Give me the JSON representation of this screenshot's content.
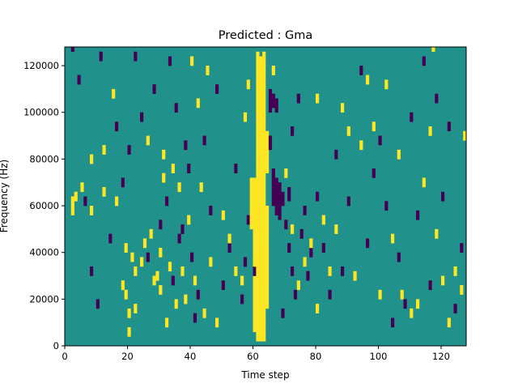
{
  "chart_data": {
    "type": "heatmap",
    "title": "Predicted : Gma",
    "xlabel": "Time step",
    "ylabel": "Frequency (Hz)",
    "xlim": [
      0,
      128
    ],
    "ylim": [
      0,
      128000
    ],
    "x_ticks": [
      0,
      20,
      40,
      60,
      80,
      100,
      120
    ],
    "y_ticks": [
      0,
      20000,
      40000,
      60000,
      80000,
      100000,
      120000
    ],
    "x_tick_labels": [
      "0",
      "20",
      "40",
      "60",
      "80",
      "100",
      "120"
    ],
    "y_tick_labels": [
      "0",
      "20000",
      "40000",
      "60000",
      "80000",
      "100000",
      "120000"
    ],
    "n_time_steps": 128,
    "n_freq_bins": 64,
    "bin_hz": 2000,
    "colormap": {
      "-1": "#440154",
      "0": "#21918c",
      "1": "#fde725"
    },
    "background_level": 0,
    "high_runs": [
      {
        "t": 61,
        "f_start": 2000,
        "f_end": 126000
      },
      {
        "t": 62,
        "f_start": 4000,
        "f_end": 124000
      },
      {
        "t": 63,
        "f_start": 2000,
        "f_end": 126000
      },
      {
        "t": 60,
        "f_start": 10000,
        "f_end": 72000
      },
      {
        "t": 59,
        "f_start": 50000,
        "f_end": 72000
      },
      {
        "t": 64,
        "f_start": 16000,
        "f_end": 60000
      },
      {
        "t": 64,
        "f_start": 74000,
        "f_end": 92000
      }
    ],
    "low_runs": [
      {
        "t": 67,
        "f_start": 56000,
        "f_end": 72000
      },
      {
        "t": 68,
        "f_start": 54000,
        "f_end": 70000
      },
      {
        "t": 66,
        "f_start": 60000,
        "f_end": 76000
      },
      {
        "t": 65,
        "f_start": 100000,
        "f_end": 110000
      },
      {
        "t": 66,
        "f_start": 102000,
        "f_end": 108000
      },
      {
        "t": 67,
        "f_start": 100000,
        "f_end": 106000
      },
      {
        "t": 65,
        "f_start": 84000,
        "f_end": 90000
      },
      {
        "t": 69,
        "f_start": 60000,
        "f_end": 66000
      },
      {
        "t": 71,
        "f_start": 62000,
        "f_end": 68000
      }
    ],
    "high_cells": [
      [
        2,
        60000
      ],
      [
        2,
        56000
      ],
      [
        3,
        62000
      ],
      [
        5,
        66000
      ],
      [
        8,
        56000
      ],
      [
        8,
        78000
      ],
      [
        12,
        82000
      ],
      [
        12,
        64000
      ],
      [
        15,
        106000
      ],
      [
        16,
        60000
      ],
      [
        18,
        24000
      ],
      [
        19,
        20000
      ],
      [
        19,
        40000
      ],
      [
        20,
        12000
      ],
      [
        20,
        4000
      ],
      [
        21,
        36000
      ],
      [
        22,
        30000
      ],
      [
        22,
        14000
      ],
      [
        24,
        34000
      ],
      [
        25,
        42000
      ],
      [
        26,
        86000
      ],
      [
        27,
        46000
      ],
      [
        28,
        26000
      ],
      [
        29,
        28000
      ],
      [
        30,
        22000
      ],
      [
        30,
        38000
      ],
      [
        31,
        70000
      ],
      [
        31,
        80000
      ],
      [
        32,
        8000
      ],
      [
        33,
        32000
      ],
      [
        34,
        74000
      ],
      [
        35,
        16000
      ],
      [
        36,
        66000
      ],
      [
        37,
        30000
      ],
      [
        38,
        18000
      ],
      [
        40,
        120000
      ],
      [
        42,
        102000
      ],
      [
        44,
        12000
      ],
      [
        46,
        34000
      ],
      [
        48,
        8000
      ],
      [
        50,
        54000
      ],
      [
        52,
        44000
      ],
      [
        54,
        30000
      ],
      [
        56,
        26000
      ],
      [
        57,
        96000
      ],
      [
        58,
        110000
      ],
      [
        60,
        6000
      ],
      [
        62,
        2000
      ],
      [
        63,
        96000
      ],
      [
        66,
        116000
      ],
      [
        70,
        72000
      ],
      [
        72,
        48000
      ],
      [
        74,
        24000
      ],
      [
        76,
        34000
      ],
      [
        78,
        42000
      ],
      [
        80,
        104000
      ],
      [
        80,
        14000
      ],
      [
        82,
        52000
      ],
      [
        84,
        30000
      ],
      [
        86,
        48000
      ],
      [
        88,
        100000
      ],
      [
        90,
        90000
      ],
      [
        92,
        28000
      ],
      [
        94,
        84000
      ],
      [
        96,
        112000
      ],
      [
        98,
        92000
      ],
      [
        100,
        20000
      ],
      [
        102,
        110000
      ],
      [
        104,
        44000
      ],
      [
        106,
        80000
      ],
      [
        107,
        20000
      ],
      [
        110,
        12000
      ],
      [
        112,
        16000
      ],
      [
        114,
        68000
      ],
      [
        116,
        90000
      ],
      [
        118,
        46000
      ],
      [
        120,
        26000
      ],
      [
        122,
        8000
      ],
      [
        124,
        30000
      ],
      [
        126,
        22000
      ],
      [
        127,
        88000
      ],
      [
        117,
        126000
      ],
      [
        41,
        26000
      ],
      [
        43,
        66000
      ],
      [
        45,
        116000
      ],
      [
        39,
        52000
      ]
    ],
    "low_cells": [
      [
        2,
        126000
      ],
      [
        4,
        112000
      ],
      [
        6,
        60000
      ],
      [
        8,
        30000
      ],
      [
        10,
        16000
      ],
      [
        11,
        122000
      ],
      [
        14,
        44000
      ],
      [
        16,
        92000
      ],
      [
        18,
        68000
      ],
      [
        20,
        82000
      ],
      [
        22,
        122000
      ],
      [
        24,
        96000
      ],
      [
        26,
        36000
      ],
      [
        28,
        108000
      ],
      [
        30,
        50000
      ],
      [
        32,
        60000
      ],
      [
        34,
        26000
      ],
      [
        36,
        44000
      ],
      [
        38,
        84000
      ],
      [
        40,
        36000
      ],
      [
        42,
        20000
      ],
      [
        44,
        86000
      ],
      [
        46,
        56000
      ],
      [
        48,
        108000
      ],
      [
        50,
        24000
      ],
      [
        52,
        40000
      ],
      [
        54,
        74000
      ],
      [
        56,
        18000
      ],
      [
        57,
        34000
      ],
      [
        58,
        52000
      ],
      [
        60,
        30000
      ],
      [
        70,
        50000
      ],
      [
        72,
        90000
      ],
      [
        74,
        104000
      ],
      [
        76,
        56000
      ],
      [
        78,
        38000
      ],
      [
        80,
        62000
      ],
      [
        82,
        40000
      ],
      [
        84,
        20000
      ],
      [
        86,
        80000
      ],
      [
        88,
        30000
      ],
      [
        90,
        60000
      ],
      [
        94,
        116000
      ],
      [
        96,
        42000
      ],
      [
        98,
        72000
      ],
      [
        100,
        86000
      ],
      [
        102,
        58000
      ],
      [
        104,
        8000
      ],
      [
        106,
        36000
      ],
      [
        108,
        16000
      ],
      [
        110,
        96000
      ],
      [
        112,
        54000
      ],
      [
        114,
        120000
      ],
      [
        116,
        24000
      ],
      [
        118,
        104000
      ],
      [
        120,
        62000
      ],
      [
        122,
        92000
      ],
      [
        124,
        14000
      ],
      [
        126,
        40000
      ],
      [
        69,
        12000
      ],
      [
        73,
        20000
      ],
      [
        75,
        46000
      ],
      [
        77,
        28000
      ],
      [
        71,
        40000
      ],
      [
        72,
        30000
      ],
      [
        33,
        120000
      ],
      [
        35,
        100000
      ],
      [
        37,
        48000
      ],
      [
        39,
        74000
      ],
      [
        41,
        10000
      ]
    ]
  }
}
